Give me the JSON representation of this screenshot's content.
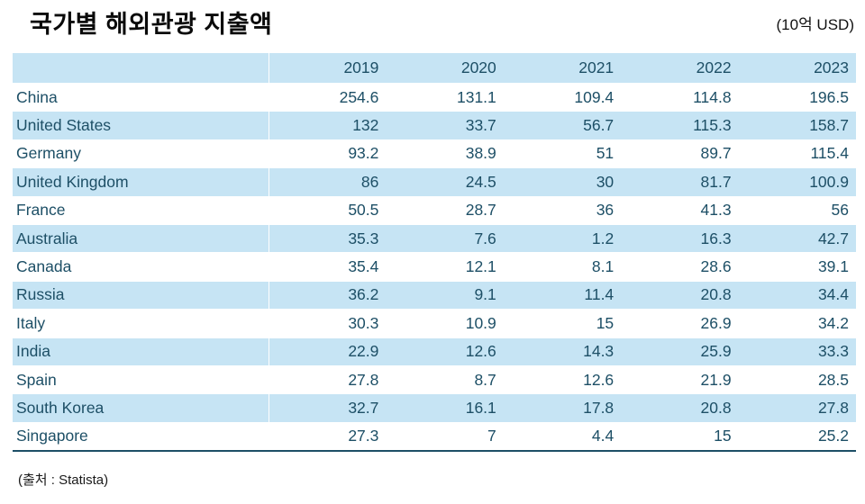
{
  "title": "국가별 해외관광 지출액",
  "unit_label": "(10억 USD)",
  "source_label": "(출처 : Statista)",
  "colors": {
    "band_blue": "#c6e4f4",
    "table_text": "#1d4f66",
    "bottom_border": "#1d4f66",
    "title_text": "#0a0a0a"
  },
  "chart_data": {
    "type": "table",
    "title": "국가별 해외관광 지출액",
    "unit": "10억 USD",
    "source": "Statista",
    "columns": [
      "",
      "2019",
      "2020",
      "2021",
      "2022",
      "2023"
    ],
    "rows": [
      {
        "country": "China",
        "values": [
          "254.6",
          "131.1",
          "109.4",
          "114.8",
          "196.5"
        ]
      },
      {
        "country": "United States",
        "values": [
          "132",
          "33.7",
          "56.7",
          "115.3",
          "158.7"
        ]
      },
      {
        "country": "Germany",
        "values": [
          "93.2",
          "38.9",
          "51",
          "89.7",
          "115.4"
        ]
      },
      {
        "country": "United Kingdom",
        "values": [
          "86",
          "24.5",
          "30",
          "81.7",
          "100.9"
        ]
      },
      {
        "country": "France",
        "values": [
          "50.5",
          "28.7",
          "36",
          "41.3",
          "56"
        ]
      },
      {
        "country": "Australia",
        "values": [
          "35.3",
          "7.6",
          "1.2",
          "16.3",
          "42.7"
        ]
      },
      {
        "country": "Canada",
        "values": [
          "35.4",
          "12.1",
          "8.1",
          "28.6",
          "39.1"
        ]
      },
      {
        "country": "Russia",
        "values": [
          "36.2",
          "9.1",
          "11.4",
          "20.8",
          "34.4"
        ]
      },
      {
        "country": "Italy",
        "values": [
          "30.3",
          "10.9",
          "15",
          "26.9",
          "34.2"
        ]
      },
      {
        "country": "India",
        "values": [
          "22.9",
          "12.6",
          "14.3",
          "25.9",
          "33.3"
        ]
      },
      {
        "country": "Spain",
        "values": [
          "27.8",
          "8.7",
          "12.6",
          "21.9",
          "28.5"
        ]
      },
      {
        "country": "South Korea",
        "values": [
          "32.7",
          "16.1",
          "17.8",
          "20.8",
          "27.8"
        ]
      },
      {
        "country": "Singapore",
        "values": [
          "27.3",
          "7",
          "4.4",
          "15",
          "25.2"
        ]
      }
    ]
  }
}
